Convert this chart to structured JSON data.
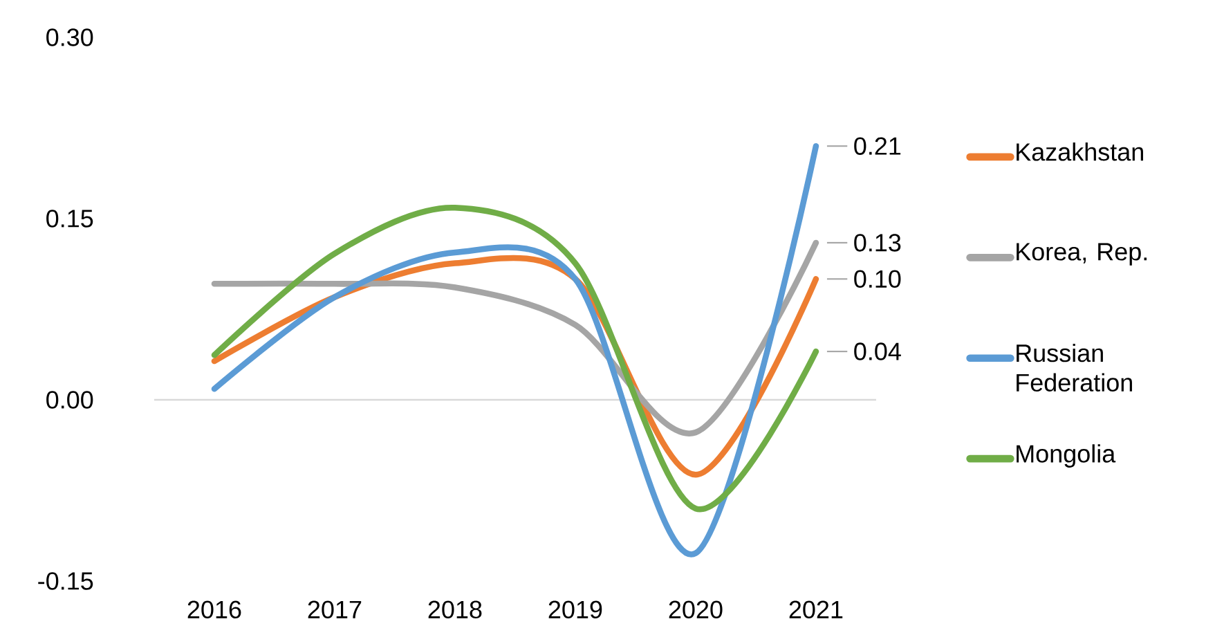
{
  "chart_data": {
    "type": "line",
    "categories": [
      "2016",
      "2017",
      "2018",
      "2019",
      "2020",
      "2021"
    ],
    "series": [
      {
        "name": "Kazakhstan",
        "color": "#ed7d31",
        "values": [
          0.032,
          0.085,
          0.113,
          0.1,
          -0.062,
          0.1
        ]
      },
      {
        "name": "Korea, Rep.",
        "color": "#a5a5a5",
        "values": [
          0.096,
          0.096,
          0.093,
          0.062,
          -0.027,
          0.13
        ]
      },
      {
        "name": "Russian Federation",
        "color": "#5b9bd5",
        "values": [
          0.009,
          0.085,
          0.122,
          0.1,
          -0.127,
          0.21
        ]
      },
      {
        "name": "Mongolia",
        "color": "#70ad47",
        "values": [
          0.037,
          0.121,
          0.159,
          0.113,
          -0.09,
          0.04
        ]
      }
    ],
    "ylim": [
      -0.15,
      0.3
    ],
    "yticks": [
      {
        "value": -0.15,
        "label": "-0.15"
      },
      {
        "value": 0,
        "label": "0.00"
      },
      {
        "value": 0.15,
        "label": "0.15"
      },
      {
        "value": 0.3,
        "label": "0.30"
      }
    ],
    "ref_lines": [
      {
        "axis": "y",
        "value": 0,
        "color": "#d9d9d9"
      }
    ],
    "annotations": [
      {
        "text": "0.21",
        "x": "2021",
        "y": 0.21
      },
      {
        "text": "0.13",
        "x": "2021",
        "y": 0.13
      },
      {
        "text": "0.10",
        "x": "2021",
        "y": 0.1
      },
      {
        "text": "0.04",
        "x": "2021",
        "y": 0.04
      }
    ],
    "legend": "right",
    "grid": false,
    "marker": "none",
    "line_style": "solid"
  }
}
